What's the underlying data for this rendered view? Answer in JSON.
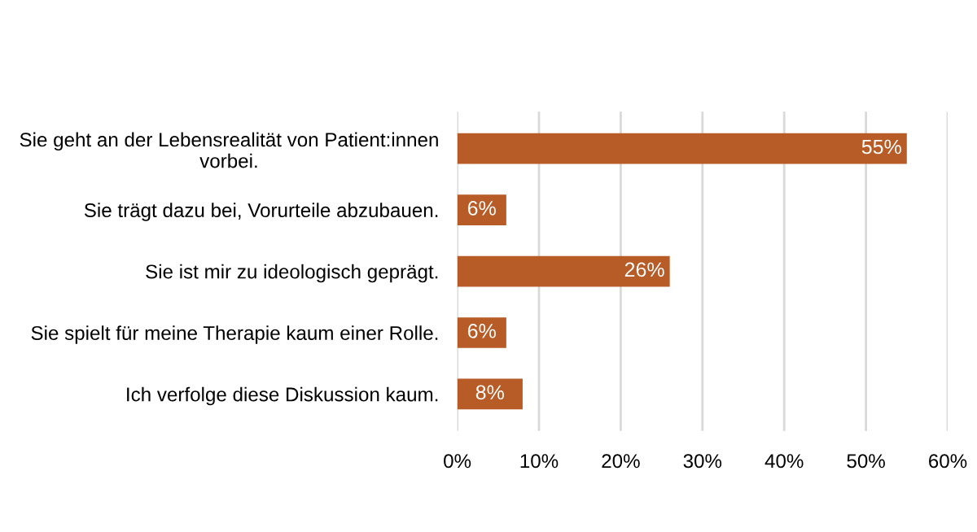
{
  "chart_data": {
    "type": "bar",
    "orientation": "horizontal",
    "categories": [
      "Sie geht an der Lebensrealität von Patient:innen\nvorbei.",
      "Sie trägt dazu bei, Vorurteile abzubauen.",
      "Sie ist mir zu ideologisch geprägt.",
      "Sie spielt für meine Therapie kaum einer Rolle.",
      "Ich verfolge diese Diskussion kaum."
    ],
    "values": [
      55,
      6,
      26,
      6,
      8
    ],
    "value_labels": [
      "55%",
      "6%",
      "26%",
      "6%",
      "8%"
    ],
    "color": "#b85c27",
    "xlim": [
      0,
      60
    ],
    "xticks": [
      {
        "value": 0,
        "label": "0%"
      },
      {
        "value": 10,
        "label": "10%"
      },
      {
        "value": 20,
        "label": "20%"
      },
      {
        "value": 30,
        "label": "30%"
      },
      {
        "value": 40,
        "label": "40%"
      },
      {
        "value": 50,
        "label": "50%"
      },
      {
        "value": 60,
        "label": "60%"
      }
    ],
    "grid": "x"
  }
}
